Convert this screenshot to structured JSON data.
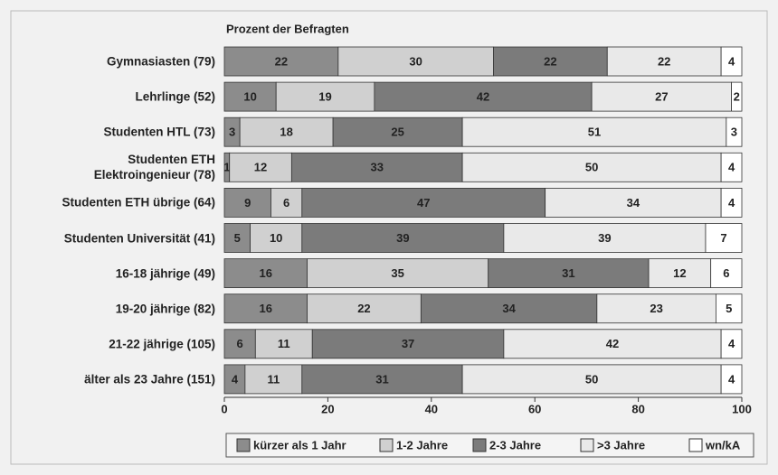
{
  "chart_data": {
    "type": "stacked_bar_horizontal",
    "title": "Prozent der Befragten",
    "categories": [
      "Gymnasiasten (79)",
      "Lehrlinge (52)",
      "Studenten HTL (73)",
      "Studenten ETH\nElektroingenieur (78)",
      "Studenten ETH übrige (64)",
      "Studenten Universität (41)",
      "16-18 jährige (49)",
      "19-20 jährige (82)",
      "21-22 jährige (105)",
      "älter als 23 Jahre (151)"
    ],
    "series": [
      {
        "name": "kürzer als 1 Jahr",
        "color": "#8c8c8c",
        "values": [
          22,
          10,
          3,
          1,
          9,
          5,
          16,
          16,
          6,
          4
        ]
      },
      {
        "name": "1-2 Jahre",
        "color": "#d0d0d0",
        "values": [
          30,
          19,
          18,
          12,
          6,
          10,
          35,
          22,
          11,
          11
        ]
      },
      {
        "name": "2-3 Jahre",
        "color": "#7b7b7b",
        "values": [
          22,
          42,
          25,
          33,
          47,
          39,
          31,
          34,
          37,
          31
        ]
      },
      {
        "name": ">3 Jahre",
        "color": "#e9e9e9",
        "values": [
          22,
          27,
          51,
          50,
          34,
          39,
          12,
          23,
          42,
          50
        ]
      },
      {
        "name": "wn/kA",
        "color": "#ffffff",
        "values": [
          4,
          2,
          3,
          4,
          4,
          7,
          6,
          5,
          4,
          4
        ]
      }
    ],
    "xlim": [
      0,
      100
    ],
    "xticks": [
      0,
      20,
      40,
      60,
      80,
      100
    ],
    "legend": "bottom"
  }
}
